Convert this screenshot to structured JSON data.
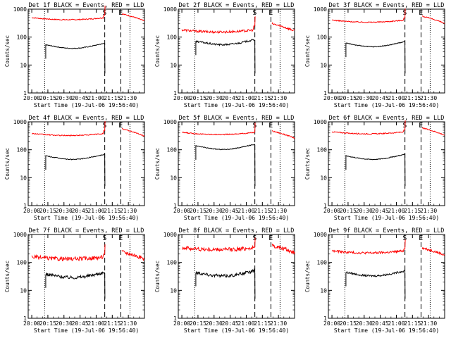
{
  "chart_data": [
    {
      "type": "line",
      "title": "Det 1f BLACK = Events, RED = LLD",
      "xlabel": "Start Time (19-Jul-06 19:56:40)",
      "ylabel": "Counts/sec",
      "x_ticks": [
        "20:00",
        "20:15",
        "20:30",
        "20:45",
        "21:00",
        "21:15",
        "21:30"
      ],
      "y_ticks": [
        "1",
        "10",
        "100",
        "1000"
      ],
      "yscale": "log",
      "ylim": [
        1,
        1000
      ],
      "markers": [
        "S",
        "E"
      ],
      "events_level": 48,
      "lld_level": 440,
      "lld_start": 560,
      "lld_end": 600,
      "lld_tail": 680,
      "noise": "low",
      "series": [
        {
          "name": "BLACK = Events",
          "color": "#000000"
        },
        {
          "name": "RED = LLD",
          "color": "#ff0000"
        }
      ]
    },
    {
      "type": "line",
      "title": "Det 2f BLACK = Events, RED = LLD",
      "xlabel": "Start Time (19-Jul-06 19:56:40)",
      "ylabel": "Counts/sec",
      "x_ticks": [
        "20:00",
        "20:15",
        "20:30",
        "20:45",
        "21:00",
        "21:15",
        "21:30"
      ],
      "y_ticks": [
        "1",
        "10",
        "100",
        "1000"
      ],
      "yscale": "log",
      "ylim": [
        1,
        1000
      ],
      "markers": [
        "S",
        "E"
      ],
      "events_level": 65,
      "lld_level": 160,
      "lld_start": 210,
      "lld_end": 250,
      "lld_tail": 300,
      "noise": "medium",
      "series": [
        {
          "name": "BLACK = Events",
          "color": "#000000"
        },
        {
          "name": "RED = LLD",
          "color": "#ff0000"
        }
      ]
    },
    {
      "type": "line",
      "title": "Det 3f BLACK = Events, RED = LLD",
      "xlabel": "Start Time (19-Jul-06 19:56:40)",
      "ylabel": "Counts/sec",
      "x_ticks": [
        "20:00",
        "20:15",
        "20:30",
        "20:45",
        "21:00",
        "21:15",
        "21:30"
      ],
      "y_ticks": [
        "1",
        "10",
        "100",
        "1000"
      ],
      "yscale": "log",
      "ylim": [
        1,
        1000
      ],
      "markers": [
        "S",
        "E"
      ],
      "events_level": 55,
      "lld_level": 360,
      "lld_start": 450,
      "lld_end": 480,
      "lld_tail": 560,
      "noise": "low",
      "series": [
        {
          "name": "BLACK = Events",
          "color": "#000000"
        },
        {
          "name": "RED = LLD",
          "color": "#ff0000"
        }
      ]
    },
    {
      "type": "line",
      "title": "Det 4f BLACK = Events, RED = LLD",
      "xlabel": "Start Time (19-Jul-06 19:56:40)",
      "ylabel": "Counts/sec",
      "x_ticks": [
        "20:00",
        "20:15",
        "20:30",
        "20:45",
        "21:00",
        "21:15",
        "21:30"
      ],
      "y_ticks": [
        "1",
        "10",
        "100",
        "1000"
      ],
      "yscale": "log",
      "ylim": [
        1,
        1000
      ],
      "markers": [
        "S",
        "E"
      ],
      "events_level": 55,
      "lld_level": 340,
      "lld_start": 450,
      "lld_end": 480,
      "lld_tail": 560,
      "noise": "low",
      "series": [
        {
          "name": "BLACK = Events",
          "color": "#000000"
        },
        {
          "name": "RED = LLD",
          "color": "#ff0000"
        }
      ]
    },
    {
      "type": "line",
      "title": "Det 5f BLACK = Events, RED = LLD",
      "xlabel": "Start Time (19-Jul-06 19:56:40)",
      "ylabel": "Counts/sec",
      "x_ticks": [
        "20:00",
        "20:15",
        "20:30",
        "20:45",
        "21:00",
        "21:15",
        "21:30"
      ],
      "y_ticks": [
        "1",
        "10",
        "100",
        "1000"
      ],
      "yscale": "log",
      "ylim": [
        1,
        1000
      ],
      "markers": [
        "S",
        "E"
      ],
      "events_level": 125,
      "lld_level": 370,
      "lld_start": 380,
      "lld_end": 420,
      "lld_tail": 470,
      "noise": "low",
      "series": [
        {
          "name": "BLACK = Events",
          "color": "#000000"
        },
        {
          "name": "RED = LLD",
          "color": "#ff0000"
        }
      ]
    },
    {
      "type": "line",
      "title": "Det 6f BLACK = Events, RED = LLD",
      "xlabel": "Start Time (19-Jul-06 19:56:40)",
      "ylabel": "Counts/sec",
      "x_ticks": [
        "20:00",
        "20:15",
        "20:30",
        "20:45",
        "21:00",
        "21:15",
        "21:30"
      ],
      "y_ticks": [
        "1",
        "10",
        "100",
        "1000"
      ],
      "yscale": "log",
      "ylim": [
        1,
        1000
      ],
      "markers": [
        "S",
        "E"
      ],
      "events_level": 55,
      "lld_level": 390,
      "lld_start": 480,
      "lld_end": 510,
      "lld_tail": 600,
      "noise": "low",
      "series": [
        {
          "name": "BLACK = Events",
          "color": "#000000"
        },
        {
          "name": "RED = LLD",
          "color": "#ff0000"
        }
      ]
    },
    {
      "type": "line",
      "title": "Det 7f BLACK = Events, RED = LLD",
      "xlabel": "Start Time (19-Jul-06 19:56:40)",
      "ylabel": "Counts/sec",
      "x_ticks": [
        "20:00",
        "20:15",
        "20:30",
        "20:45",
        "21:00",
        "21:15",
        "21:30"
      ],
      "y_ticks": [
        "1",
        "10",
        "100",
        "1000"
      ],
      "yscale": "log",
      "ylim": [
        1,
        1000
      ],
      "markers": [
        "S",
        "E"
      ],
      "events_level": 35,
      "lld_level": 140,
      "lld_start": 170,
      "lld_end": 200,
      "lld_tail": 240,
      "noise": "high",
      "series": [
        {
          "name": "BLACK = Events",
          "color": "#000000"
        },
        {
          "name": "RED = LLD",
          "color": "#ff0000"
        }
      ]
    },
    {
      "type": "line",
      "title": "Det 8f BLACK = Events, RED = LLD",
      "xlabel": "Start Time (19-Jul-06 19:56:40)",
      "ylabel": "Counts/sec",
      "x_ticks": [
        "20:00",
        "20:15",
        "20:30",
        "20:45",
        "21:00",
        "21:15",
        "21:30"
      ],
      "y_ticks": [
        "1",
        "10",
        "100",
        "1000"
      ],
      "yscale": "log",
      "ylim": [
        1,
        1000
      ],
      "markers": [
        "S",
        "E"
      ],
      "events_level": 40,
      "lld_level": 300,
      "lld_start": 330,
      "lld_end": 350,
      "lld_tail": 400,
      "noise": "high",
      "series": [
        {
          "name": "BLACK = Events",
          "color": "#000000"
        },
        {
          "name": "RED = LLD",
          "color": "#ff0000"
        }
      ]
    },
    {
      "type": "line",
      "title": "Det 9f BLACK = Events, RED = LLD",
      "xlabel": "Start Time (19-Jul-06 19:56:40)",
      "ylabel": "Counts/sec",
      "x_ticks": [
        "20:00",
        "20:15",
        "20:30",
        "20:45",
        "21:00",
        "21:15",
        "21:30"
      ],
      "y_ticks": [
        "1",
        "10",
        "100",
        "1000"
      ],
      "yscale": "log",
      "ylim": [
        1,
        1000
      ],
      "markers": [
        "S",
        "E"
      ],
      "events_level": 40,
      "lld_level": 230,
      "lld_start": 270,
      "lld_end": 300,
      "lld_tail": 330,
      "noise": "medium",
      "series": [
        {
          "name": "BLACK = Events",
          "color": "#000000"
        },
        {
          "name": "RED = LLD",
          "color": "#ff0000"
        }
      ]
    }
  ]
}
